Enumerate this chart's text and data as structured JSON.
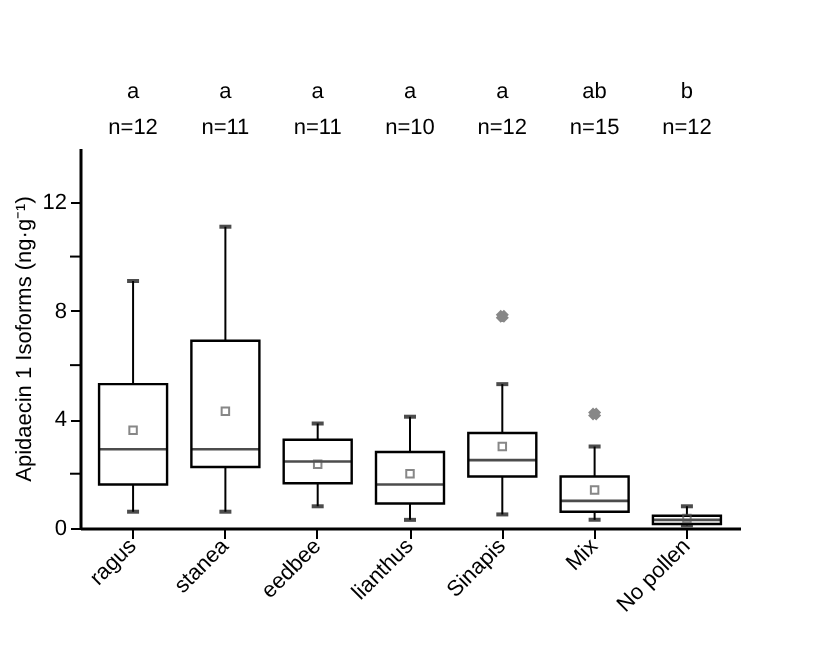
{
  "chart_data": {
    "type": "box",
    "categories": [
      "ragus",
      "stanea",
      "eedbee",
      "lianthus",
      "Sinapis",
      "Mix",
      "No pollen"
    ],
    "ylabel": "Apidaecin 1 Isoforms (ng·g⁻¹)",
    "ylim": [
      0,
      14
    ],
    "yticks": [
      0,
      {
        "value": 2,
        "label": null
      },
      4,
      {
        "value": 6,
        "label": null
      },
      8,
      {
        "value": 10,
        "label": null
      },
      12
    ],
    "boxes": [
      {
        "low": 0.6,
        "q1": 1.6,
        "median": 2.9,
        "q3": 5.3,
        "high": 9.1,
        "mean": 3.6
      },
      {
        "low": 0.6,
        "q1": 2.25,
        "median": 2.9,
        "q3": 6.9,
        "high": 11.1,
        "mean": 4.3
      },
      {
        "low": 0.8,
        "q1": 1.65,
        "median": 2.45,
        "q3": 3.25,
        "high": 3.85,
        "mean": 2.35
      },
      {
        "low": 0.3,
        "q1": 0.9,
        "median": 1.6,
        "q3": 2.8,
        "high": 4.1,
        "mean": 2.0
      },
      {
        "low": 0.5,
        "q1": 1.9,
        "median": 2.5,
        "q3": 3.5,
        "high": 5.3,
        "mean": 3.0,
        "outliers": [
          7.8
        ]
      },
      {
        "low": 0.3,
        "q1": 0.6,
        "median": 1.0,
        "q3": 1.9,
        "high": 3.0,
        "mean": 1.4,
        "outliers": [
          4.2
        ]
      },
      {
        "low": 0.1,
        "q1": 0.15,
        "median": 0.3,
        "q3": 0.45,
        "high": 0.8,
        "mean": 0.35
      }
    ],
    "annotations": [
      "a",
      "a",
      "a",
      "a",
      "a",
      "ab",
      "b",
      "n=12",
      "n=11",
      "n=11",
      "n=10",
      "n=12",
      "n=15",
      "n=12"
    ],
    "grid": false
  }
}
